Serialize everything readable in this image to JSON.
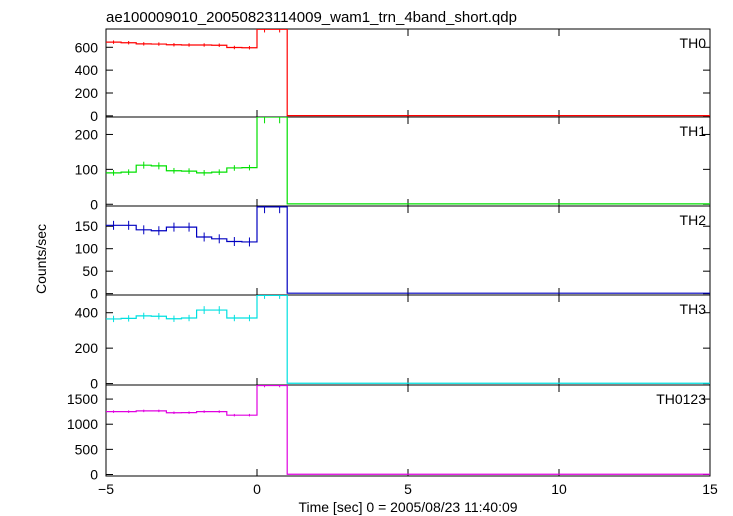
{
  "chart_data": {
    "type": "line",
    "title": "ae100009010_20050823114009_wam1_trn_4band_short.qdp",
    "xlabel": "Time [sec] 0 = 2005/08/23 11:40:09",
    "ylabel": "Counts/sec",
    "xlim": [
      -5,
      15
    ],
    "x_ticks": [
      -5,
      0,
      5,
      10,
      15
    ],
    "x_tick_labels": [
      "−5",
      "0",
      "5",
      "10",
      "15"
    ],
    "bin_edges": [
      -5,
      -4.5,
      -4,
      -3.5,
      -3,
      -2.5,
      -2,
      -1.5,
      -1,
      -0.5,
      0,
      0.5,
      1,
      15
    ],
    "x": [
      -4.75,
      -4.25,
      -3.75,
      -3.25,
      -2.75,
      -2.25,
      -1.75,
      -1.25,
      -0.75,
      -0.25,
      0.25,
      0.75,
      8
    ],
    "panels": [
      {
        "label": "TH0",
        "color": "#ff0000",
        "ylim": [
          -10,
          760
        ],
        "y_ticks": [
          0,
          200,
          400,
          600
        ],
        "values": [
          645,
          640,
          630,
          628,
          622,
          620,
          620,
          618,
          598,
          596,
          758,
          758,
          2
        ],
        "errors": [
          15,
          15,
          15,
          15,
          15,
          15,
          15,
          15,
          15,
          15,
          28,
          28,
          0
        ]
      },
      {
        "label": "TH1",
        "color": "#00e000",
        "ylim": [
          -5,
          250
        ],
        "y_ticks": [
          0,
          100,
          200
        ],
        "values": [
          90,
          92,
          112,
          110,
          96,
          95,
          90,
          92,
          104,
          105,
          250,
          250,
          1
        ],
        "errors": [
          8,
          8,
          10,
          10,
          8,
          8,
          8,
          8,
          8,
          8,
          18,
          18,
          0
        ]
      },
      {
        "label": "TH2",
        "color": "#0000c0",
        "ylim": [
          -3,
          195
        ],
        "y_ticks": [
          0,
          50,
          100,
          150
        ],
        "values": [
          152,
          152,
          142,
          140,
          148,
          148,
          126,
          122,
          116,
          115,
          193,
          193,
          1
        ],
        "errors": [
          10,
          10,
          10,
          10,
          10,
          10,
          10,
          10,
          10,
          10,
          14,
          14,
          0
        ]
      },
      {
        "label": "TH3",
        "color": "#00e0e0",
        "ylim": [
          -8,
          500
        ],
        "y_ticks": [
          0,
          200,
          400
        ],
        "values": [
          365,
          368,
          382,
          380,
          366,
          370,
          415,
          415,
          370,
          370,
          498,
          498,
          2
        ],
        "errors": [
          18,
          18,
          18,
          18,
          18,
          18,
          22,
          22,
          18,
          18,
          20,
          20,
          0
        ]
      },
      {
        "label": "TH0123",
        "color": "#e000e0",
        "ylim": [
          -30,
          1780
        ],
        "y_ticks": [
          0,
          500,
          1000,
          1500
        ],
        "values": [
          1250,
          1250,
          1265,
          1265,
          1228,
          1230,
          1250,
          1250,
          1180,
          1180,
          1770,
          1770,
          5
        ],
        "errors": [
          25,
          25,
          25,
          25,
          25,
          25,
          25,
          25,
          25,
          25,
          35,
          35,
          0
        ]
      }
    ],
    "grid": false,
    "legend": "none"
  }
}
